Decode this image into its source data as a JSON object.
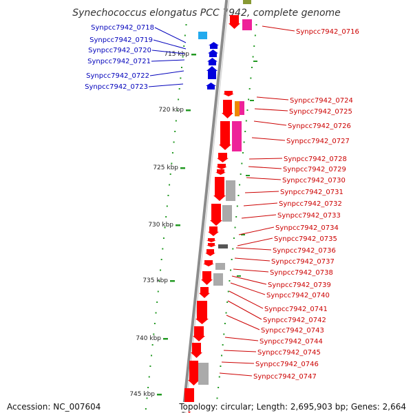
{
  "title": "Synechococcus elongatus PCC 7942, complete genome",
  "accession": "Accession: NC_007604",
  "topology": "Topology: circular; Length: 2,695,903 bp; Genes: 2,664",
  "colors": {
    "plus_labels": "#0000bb",
    "minus_labels": "#cc0000",
    "backbone": "#8c8c8c",
    "ticks": "#229922",
    "red": "#ff0000",
    "blue": "#0000dd",
    "cyan": "#22aaee",
    "magenta": "#ee2299",
    "orange": "#ee8800",
    "gray": "#aaaaaa",
    "darkgray": "#555555",
    "olive": "#889933"
  },
  "kbp_ticks": [
    {
      "label": "715 kbp",
      "kb": 715
    },
    {
      "label": "720 kbp",
      "kb": 720
    },
    {
      "label": "725 kbp",
      "kb": 725
    },
    {
      "label": "730 kbp",
      "kb": 730
    },
    {
      "label": "735 kbp",
      "kb": 735
    },
    {
      "label": "740 kbp",
      "kb": 740
    },
    {
      "label": "745 kbp",
      "kb": 745
    }
  ],
  "plus_genes": [
    "Synpcc7942_0718",
    "Synpcc7942_0719",
    "Synpcc7942_0720",
    "Synpcc7942_0721",
    "Synpcc7942_0722",
    "Synpcc7942_0723"
  ],
  "minus_genes": [
    "Synpcc7942_0716",
    "Synpcc7942_0724",
    "Synpcc7942_0725",
    "Synpcc7942_0726",
    "Synpcc7942_0727",
    "Synpcc7942_0728",
    "Synpcc7942_0729",
    "Synpcc7942_0730",
    "Synpcc7942_0731",
    "Synpcc7942_0732",
    "Synpcc7942_0733",
    "Synpcc7942_0734",
    "Synpcc7942_0735",
    "Synpcc7942_0736",
    "Synpcc7942_0737",
    "Synpcc7942_0738",
    "Synpcc7942_0739",
    "Synpcc7942_0740",
    "Synpcc7942_0741",
    "Synpcc7942_0742",
    "Synpcc7942_0743",
    "Synpcc7942_0744",
    "Synpcc7942_0745",
    "Synpcc7942_0746",
    "Synpcc7942_0747"
  ]
}
